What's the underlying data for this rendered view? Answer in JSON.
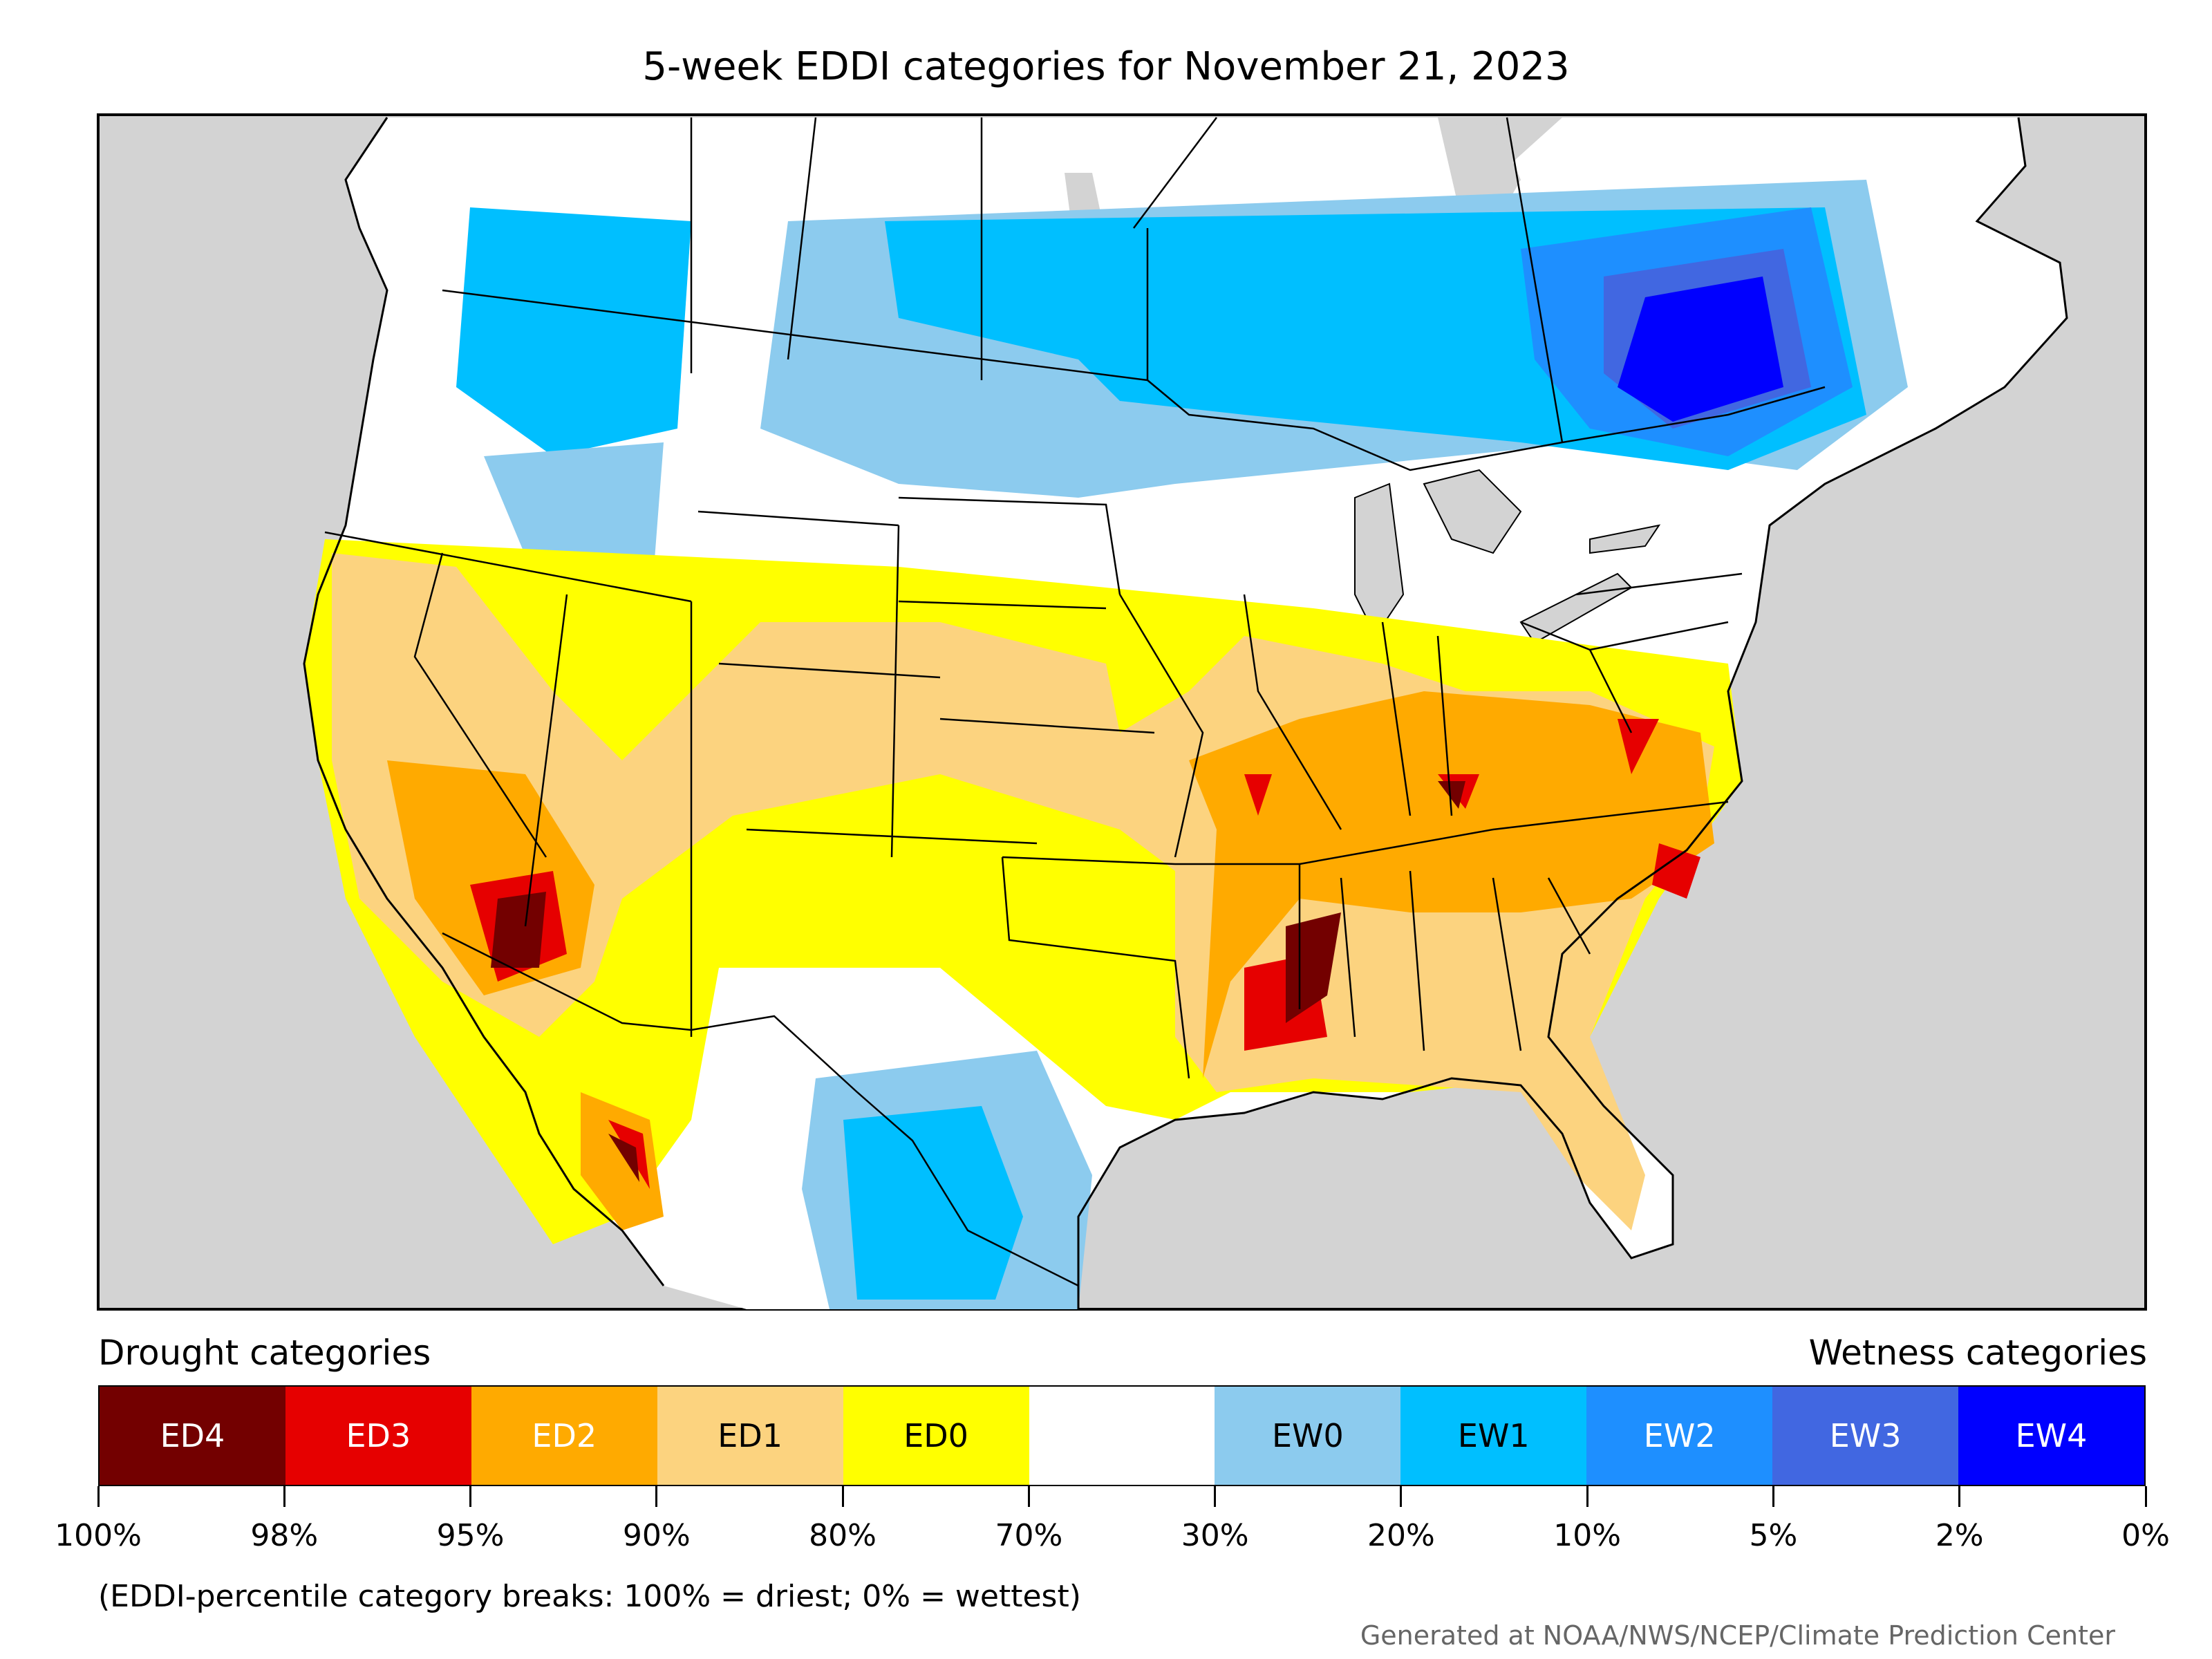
{
  "title": "5-week EDDI categories for November 21, 2023",
  "legend": {
    "drought_heading": "Drought categories",
    "wetness_heading": "Wetness categories",
    "categories": [
      {
        "label": "ED4",
        "color": "#730000",
        "text_color": "#ffffff"
      },
      {
        "label": "ED3",
        "color": "#e60000",
        "text_color": "#ffffff"
      },
      {
        "label": "ED2",
        "color": "#ffaa00",
        "text_color": "#ffffff"
      },
      {
        "label": "ED1",
        "color": "#fcd37f",
        "text_color": "#000000"
      },
      {
        "label": "ED0",
        "color": "#ffff00",
        "text_color": "#000000"
      },
      {
        "label": "",
        "color": "#ffffff",
        "text_color": "#000000"
      },
      {
        "label": "EW0",
        "color": "#8ccbee",
        "text_color": "#000000"
      },
      {
        "label": "EW1",
        "color": "#00bfff",
        "text_color": "#000000"
      },
      {
        "label": "EW2",
        "color": "#1e8fff",
        "text_color": "#ffffff"
      },
      {
        "label": "EW3",
        "color": "#4167e1",
        "text_color": "#ffffff"
      },
      {
        "label": "EW4",
        "color": "#0000ff",
        "text_color": "#ffffff"
      }
    ],
    "breaks": [
      "100%",
      "98%",
      "95%",
      "90%",
      "80%",
      "70%",
      "30%",
      "20%",
      "10%",
      "5%",
      "2%",
      "0%"
    ]
  },
  "note": "(EDDI-percentile category breaks: 100% = driest; 0% = wettest)",
  "credit": "Generated at NOAA/NWS/NCEP/Climate Prediction Center",
  "colors": {
    "ocean": "#d3d3d3",
    "land": "#ffffff",
    "borders": "#000000"
  }
}
